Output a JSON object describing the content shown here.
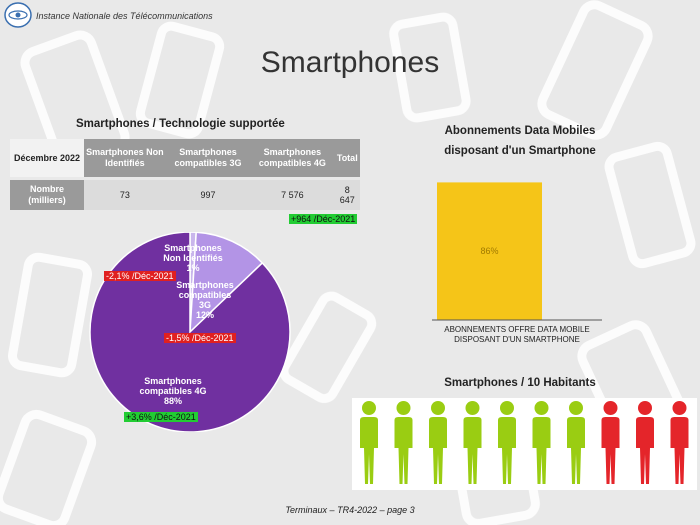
{
  "header": {
    "org_name": "Instance Nationale des Télécommunications",
    "logo_icon": "inc-logo-icon"
  },
  "page_title": "Smartphones",
  "table": {
    "title": "Smartphones / Technologie supportée",
    "corner": "Décembre 2022",
    "columns": [
      "Smartphones Non Identifiés",
      "Smartphones compatibles 3G",
      "Smartphones compatibles 4G",
      "Total"
    ],
    "row_label": "Nombre (milliers)",
    "values": [
      "73",
      "997",
      "7 576",
      "8 647"
    ],
    "total_change": "+964 /Déc-2021"
  },
  "chart_data": [
    {
      "type": "pie",
      "labels": [
        "Smartphones Non Identifiés",
        "Smartphones compatibles 3G",
        "Smartphones compatibles 4G"
      ],
      "values": [
        1,
        12,
        88
      ],
      "unit": "%",
      "changes": [
        "-2,1% /Déc-2021",
        "-1,5% /Déc-2021",
        "+3,6% /Déc-2021"
      ],
      "colors": [
        "#c9b6ec",
        "#b394e6",
        "#7030a0"
      ],
      "slice_labels": [
        {
          "name": "Smartphones",
          "sub": "Non Identifiés",
          "pct": "1%"
        },
        {
          "name": "Smartphones",
          "sub": "compatibles",
          "sub2": "3G",
          "pct": "12%"
        },
        {
          "name": "Smartphones",
          "sub": "compatibles 4G",
          "pct": "88%"
        }
      ]
    },
    {
      "type": "bar",
      "title": "Abonnements Data Mobiles disposant d'un Smartphone",
      "categories": [
        "ABONNEMENTS OFFRE DATA MOBILE DISPOSANT D'UN SMARTPHONE"
      ],
      "values": [
        86
      ],
      "value_label": "86%",
      "ylim": [
        0,
        100
      ],
      "color": "#f5c518"
    },
    {
      "type": "pictogram",
      "title": "Smartphones / 10 Habitants",
      "total": 10,
      "highlighted": 7,
      "colors": {
        "highlighted": "#9acd12",
        "rest": "#e4252a"
      }
    }
  ],
  "footer": "Terminaux – TR4-2022 – page 3"
}
